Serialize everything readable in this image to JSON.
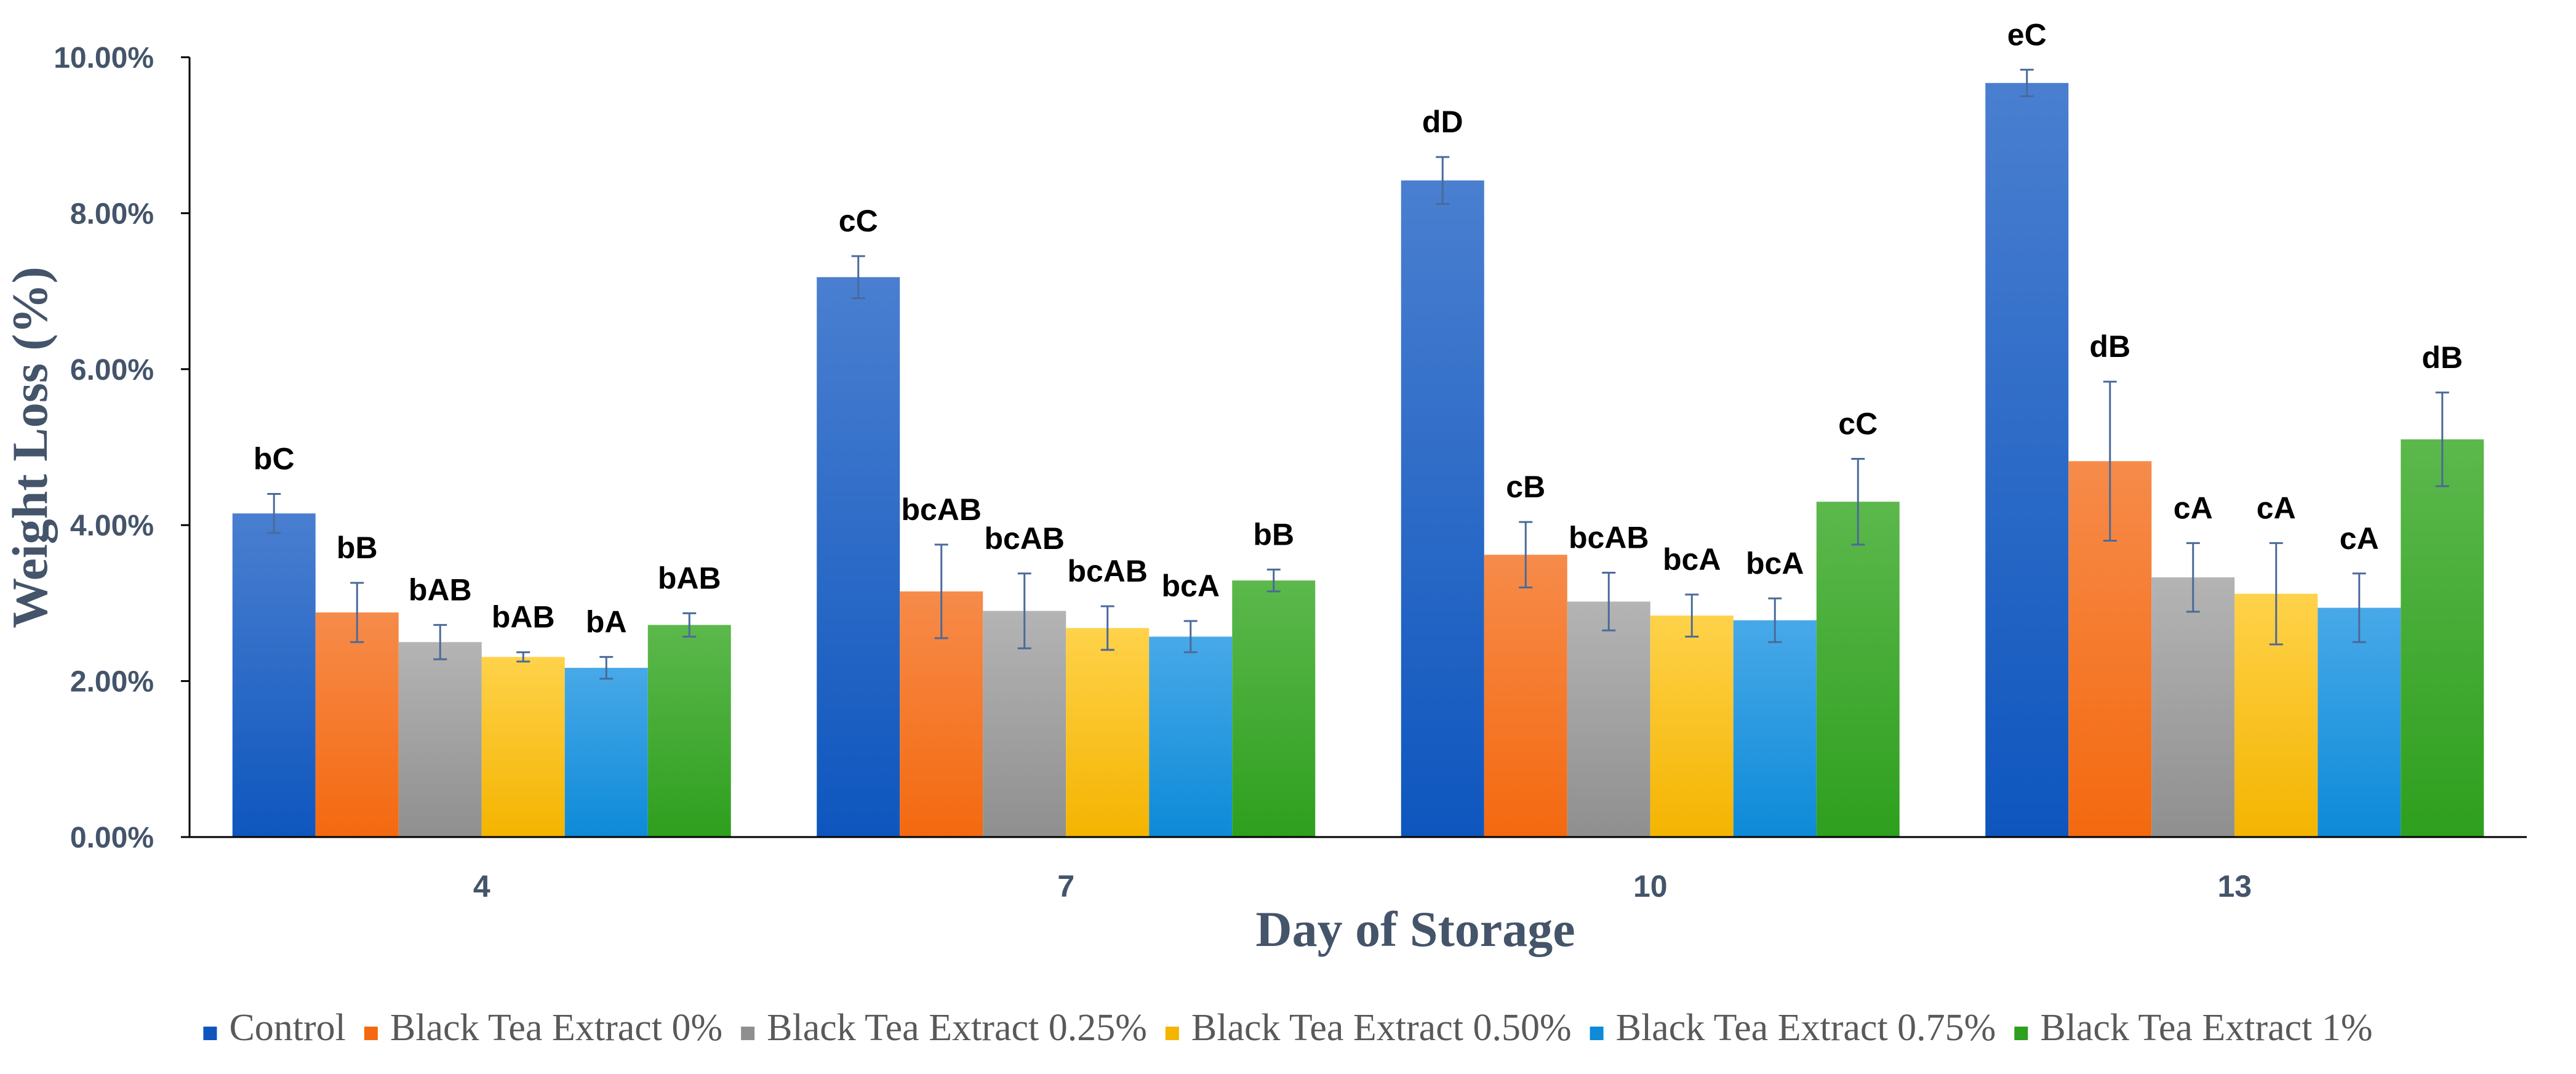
{
  "chart_data": {
    "type": "bar",
    "title": "",
    "xlabel": "Day of Storage",
    "ylabel": "Weight Loss (%)",
    "ylim": [
      0,
      10
    ],
    "yticks": [
      "0.00%",
      "2.00%",
      "4.00%",
      "6.00%",
      "8.00%",
      "10.00%"
    ],
    "ytick_values": [
      0,
      2,
      4,
      6,
      8,
      10
    ],
    "categories": [
      "4",
      "7",
      "10",
      "13"
    ],
    "grid": false,
    "legend_position": "bottom",
    "series": [
      {
        "name": "Control",
        "color_top": "#4A7FD0",
        "color_bottom": "#0E56BE",
        "values": [
          4.15,
          7.18,
          8.42,
          9.67
        ],
        "errors": [
          0.25,
          0.27,
          0.3,
          0.17
        ],
        "labels": [
          "bC",
          "cC",
          "dD",
          "eC"
        ]
      },
      {
        "name": "Black Tea Extract 0%",
        "color_top": "#F68B4A",
        "color_bottom": "#F4690F",
        "values": [
          2.88,
          3.15,
          3.62,
          4.82
        ],
        "errors": [
          0.38,
          0.6,
          0.42,
          1.02
        ],
        "labels": [
          "bB",
          "bcAB",
          "cB",
          "dB"
        ]
      },
      {
        "name": "Black Tea Extract 0.25%",
        "color_top": "#B4B4B4",
        "color_bottom": "#8F8F8F",
        "values": [
          2.5,
          2.9,
          3.02,
          3.33
        ],
        "errors": [
          0.22,
          0.48,
          0.37,
          0.44
        ],
        "labels": [
          "bAB",
          "bcAB",
          "bcAB",
          "cA"
        ]
      },
      {
        "name": "Black Tea Extract 0.50%",
        "color_top": "#FFD24A",
        "color_bottom": "#F4B400",
        "values": [
          2.31,
          2.68,
          2.84,
          3.12
        ],
        "errors": [
          0.06,
          0.28,
          0.27,
          0.65
        ],
        "labels": [
          "bAB",
          "bcAB",
          "bcA",
          "cA"
        ]
      },
      {
        "name": "Black Tea Extract 0.75%",
        "color_top": "#48A9E8",
        "color_bottom": "#0D8AD8",
        "values": [
          2.17,
          2.57,
          2.78,
          2.94
        ],
        "errors": [
          0.14,
          0.2,
          0.28,
          0.44
        ],
        "labels": [
          "bA",
          "bcA",
          "bcA",
          "cA"
        ]
      },
      {
        "name": "Black Tea Extract 1%",
        "color_top": "#5CB84C",
        "color_bottom": "#2E9F1E",
        "values": [
          2.72,
          3.29,
          4.3,
          5.1
        ],
        "errors": [
          0.15,
          0.14,
          0.55,
          0.6
        ],
        "labels": [
          "bAB",
          "bB",
          "cC",
          "dB"
        ]
      }
    ]
  },
  "colors": {
    "axis_text": "#44546A",
    "axis_line": "#000000",
    "legend_text": "#595959",
    "error_bar": "#4A6A9A"
  }
}
